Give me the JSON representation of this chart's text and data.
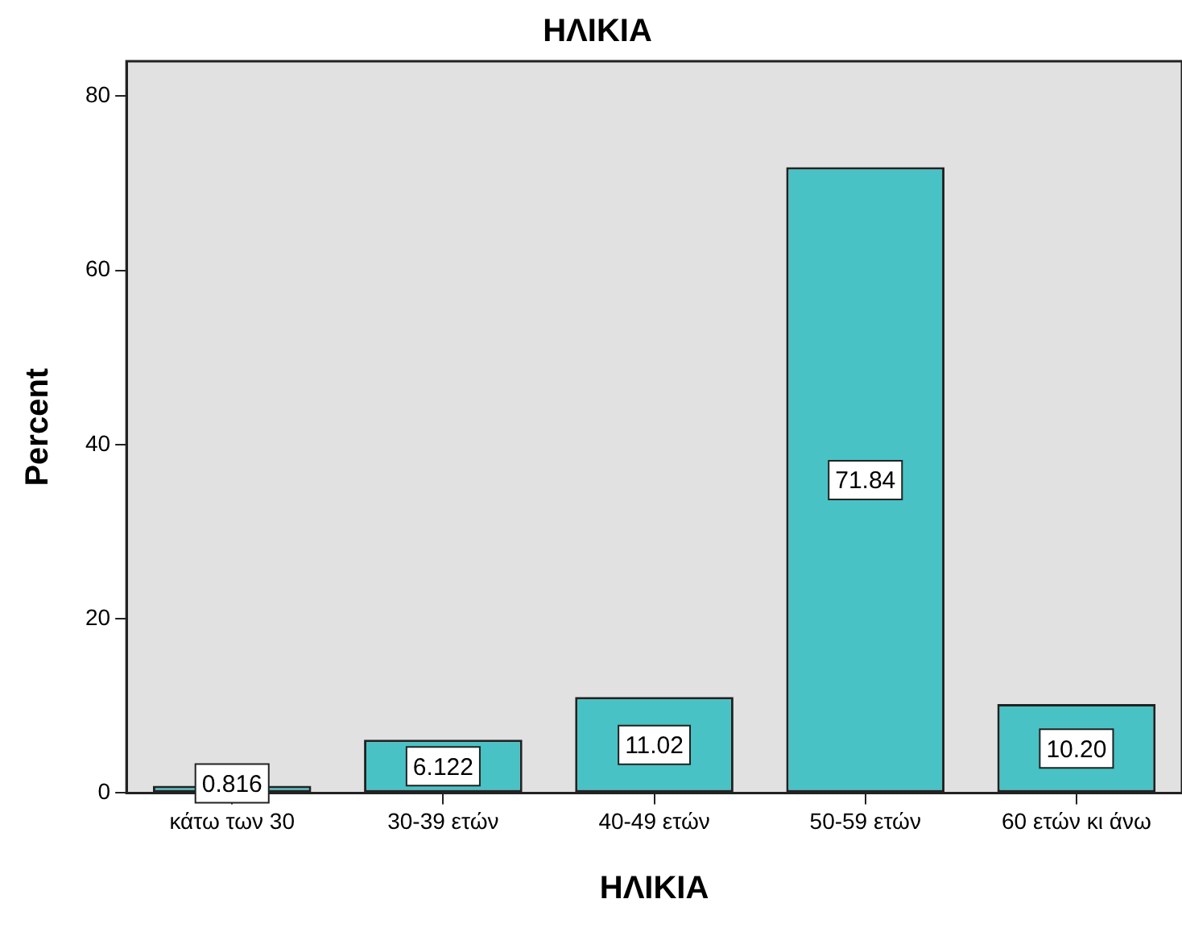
{
  "chart_data": {
    "type": "bar",
    "title": "ΗΛΙΚΙΑ",
    "xlabel": "ΗΛΙΚΙΑ",
    "ylabel": "Percent",
    "categories": [
      "κάτω των 30",
      "30-39 ετών",
      "40-49 ετών",
      "50-59 ετών",
      "60 ετών κι άνω"
    ],
    "values": [
      0.816,
      6.122,
      11.02,
      71.84,
      10.2
    ],
    "value_labels": [
      "0.816",
      "6.122",
      "11.02",
      "71.84",
      "10.20"
    ],
    "color": "#48c2c5",
    "ylim": [
      0,
      84
    ],
    "yticks": [
      0,
      20,
      40,
      60,
      80
    ],
    "grid": false,
    "legend": false
  }
}
